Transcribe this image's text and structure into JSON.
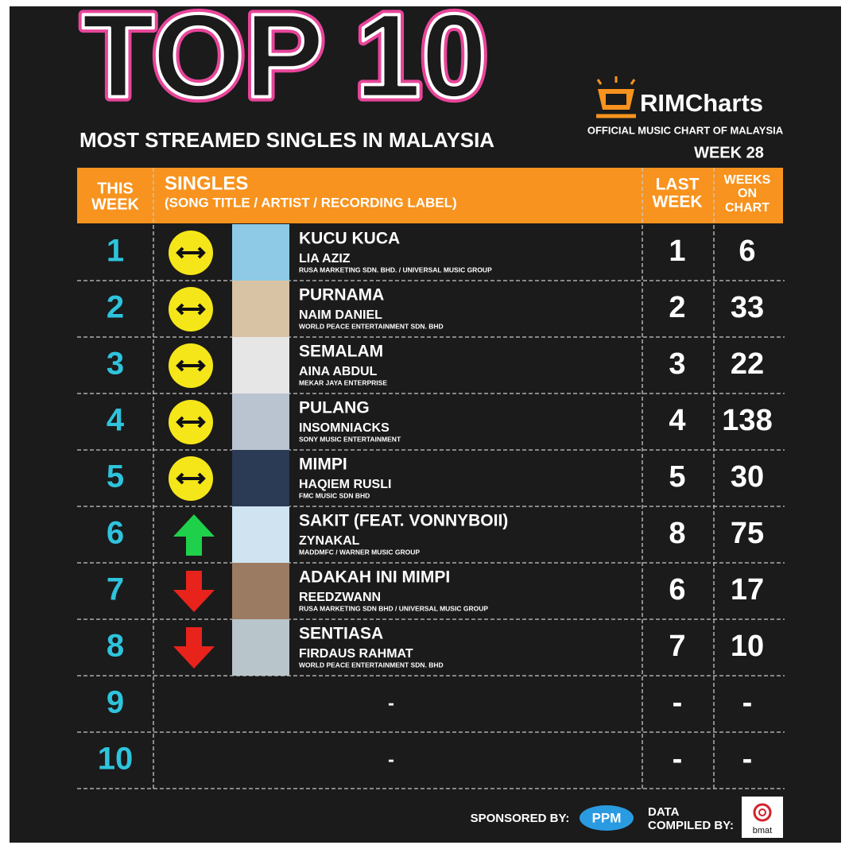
{
  "header": {
    "title": "TOP 10",
    "subtitle": "MOST STREAMED SINGLES IN MALAYSIA",
    "brand": "RIMCharts",
    "tagline": "OFFICIAL MUSIC CHART OF MALAYSIA",
    "week": "WEEK 28"
  },
  "table": {
    "columns": {
      "this_week": [
        "THIS",
        "WEEK"
      ],
      "singles": "SINGLES",
      "singles_sub": "(SONG TITLE / ARTIST / RECORDING LABEL)",
      "last_week": [
        "LAST",
        "WEEK"
      ],
      "weeks_on_chart": [
        "WEEKS",
        "ON",
        "CHART"
      ]
    },
    "rows": [
      {
        "rank": 1,
        "movement": "same",
        "title": "KUCU KUCA",
        "artist": "LIA AZIZ",
        "label": "RUSA MARKETING SDN. BHD. / UNIVERSAL MUSIC GROUP",
        "last_week": 1,
        "weeks_on_chart": 6
      },
      {
        "rank": 2,
        "movement": "same",
        "title": "PURNAMA",
        "artist": "NAIM DANIEL",
        "label": "WORLD PEACE ENTERTAINMENT SDN. BHD",
        "last_week": 2,
        "weeks_on_chart": 33
      },
      {
        "rank": 3,
        "movement": "same",
        "title": "SEMALAM",
        "artist": "AINA ABDUL",
        "label": "MEKAR JAYA ENTERPRISE",
        "last_week": 3,
        "weeks_on_chart": 22
      },
      {
        "rank": 4,
        "movement": "same",
        "title": "PULANG",
        "artist": "INSOMNIACKS",
        "label": "SONY MUSIC ENTERTAINMENT",
        "last_week": 4,
        "weeks_on_chart": 138
      },
      {
        "rank": 5,
        "movement": "same",
        "title": "MIMPI",
        "artist": "HAQIEM RUSLI",
        "label": "FMC MUSIC SDN BHD",
        "last_week": 5,
        "weeks_on_chart": 30
      },
      {
        "rank": 6,
        "movement": "up",
        "title": "SAKIT (FEAT. VONNYBOII)",
        "artist": "ZYNAKAL",
        "label": "MADDMFC / WARNER MUSIC GROUP",
        "last_week": 8,
        "weeks_on_chart": 75
      },
      {
        "rank": 7,
        "movement": "down",
        "title": "ADAKAH INI MIMPI",
        "artist": "REEDZWANN",
        "label": "RUSA MARKETING SDN BHD / UNIVERSAL MUSIC GROUP",
        "last_week": 6,
        "weeks_on_chart": 17
      },
      {
        "rank": 8,
        "movement": "down",
        "title": "SENTIASA",
        "artist": "FIRDAUS RAHMAT",
        "label": "WORLD PEACE ENTERTAINMENT SDN. BHD",
        "last_week": 7,
        "weeks_on_chart": 10
      },
      {
        "rank": 9,
        "title": "-",
        "last_week": "-",
        "weeks_on_chart": "-"
      },
      {
        "rank": 10,
        "title": "-",
        "last_week": "-",
        "weeks_on_chart": "-"
      }
    ]
  },
  "footer": {
    "sponsored": "SPONSORED BY:",
    "sponsor": "PPM",
    "compiled": [
      "DATA",
      "COMPILED BY:"
    ],
    "compiler": "bmat"
  }
}
